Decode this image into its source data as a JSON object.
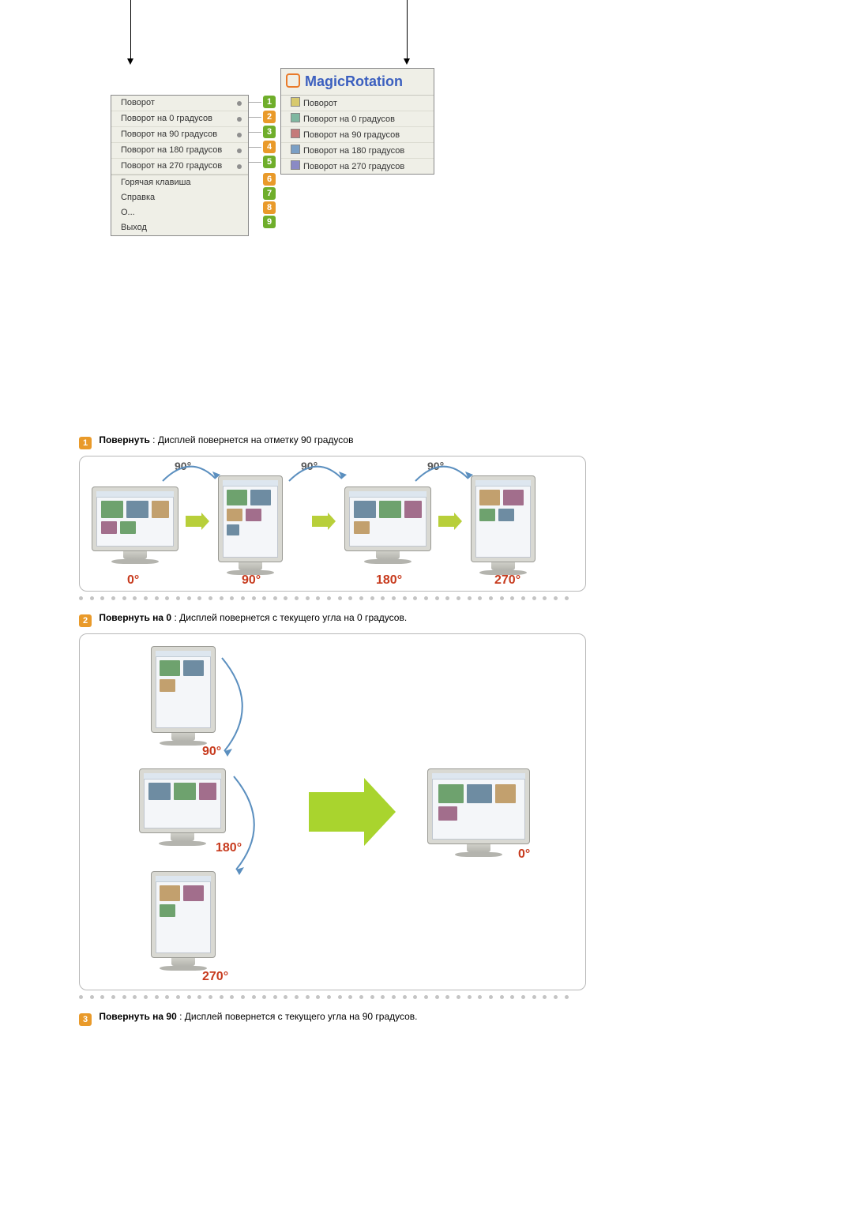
{
  "app_title": "MagicRotation",
  "menu_left": {
    "items": [
      "Поворот",
      "Поворот на 0 градусов",
      "Поворот на 90 градусов",
      "Поворот на 180 градусов",
      "Поворот на 270 градусов"
    ],
    "extra": [
      "Горячая клавиша",
      "Справка",
      "О...",
      "Выход"
    ]
  },
  "menu_right": {
    "items": [
      "Поворот",
      "Поворот на 0 градусов",
      "Поворот на 90 градусов",
      "Поворот на 180 градусов",
      "Поворот на 270 градусов"
    ]
  },
  "callouts": [
    "1",
    "2",
    "3",
    "4",
    "5",
    "6",
    "7",
    "8",
    "9"
  ],
  "desc": {
    "d1_label": "Повернуть",
    "d1_text": " :  Дисплей повернется на отметку 90 градусов",
    "d2_label": "Повернуть на 0",
    "d2_text": " : Дисплей повернется с текущего угла на 0 градусов.",
    "d3_label": "Повернуть на 90",
    "d3_text": " : Дисплей повернется с текущего угла на 90 градусов."
  },
  "diagram_h": {
    "top_labels": [
      "90°",
      "90°",
      "90°"
    ],
    "bottom_labels": [
      "0°",
      "90°",
      "180°",
      "270°"
    ],
    "bottom_color": "#c73a1d",
    "top_color": "#666666",
    "arrow_color": "#b8cf3a",
    "curve_color": "#5b8fbf"
  },
  "diagram_v": {
    "left_labels": [
      "90°",
      "180°",
      "270°"
    ],
    "right_label": "0°",
    "label_color": "#c73a1d",
    "curve_color": "#5b8fbf",
    "big_arrow_color": "#a9d42e"
  },
  "dots_count": 46,
  "colors": {
    "badge_orange": "#e99a2a",
    "badge_green": "#6fae2b"
  }
}
